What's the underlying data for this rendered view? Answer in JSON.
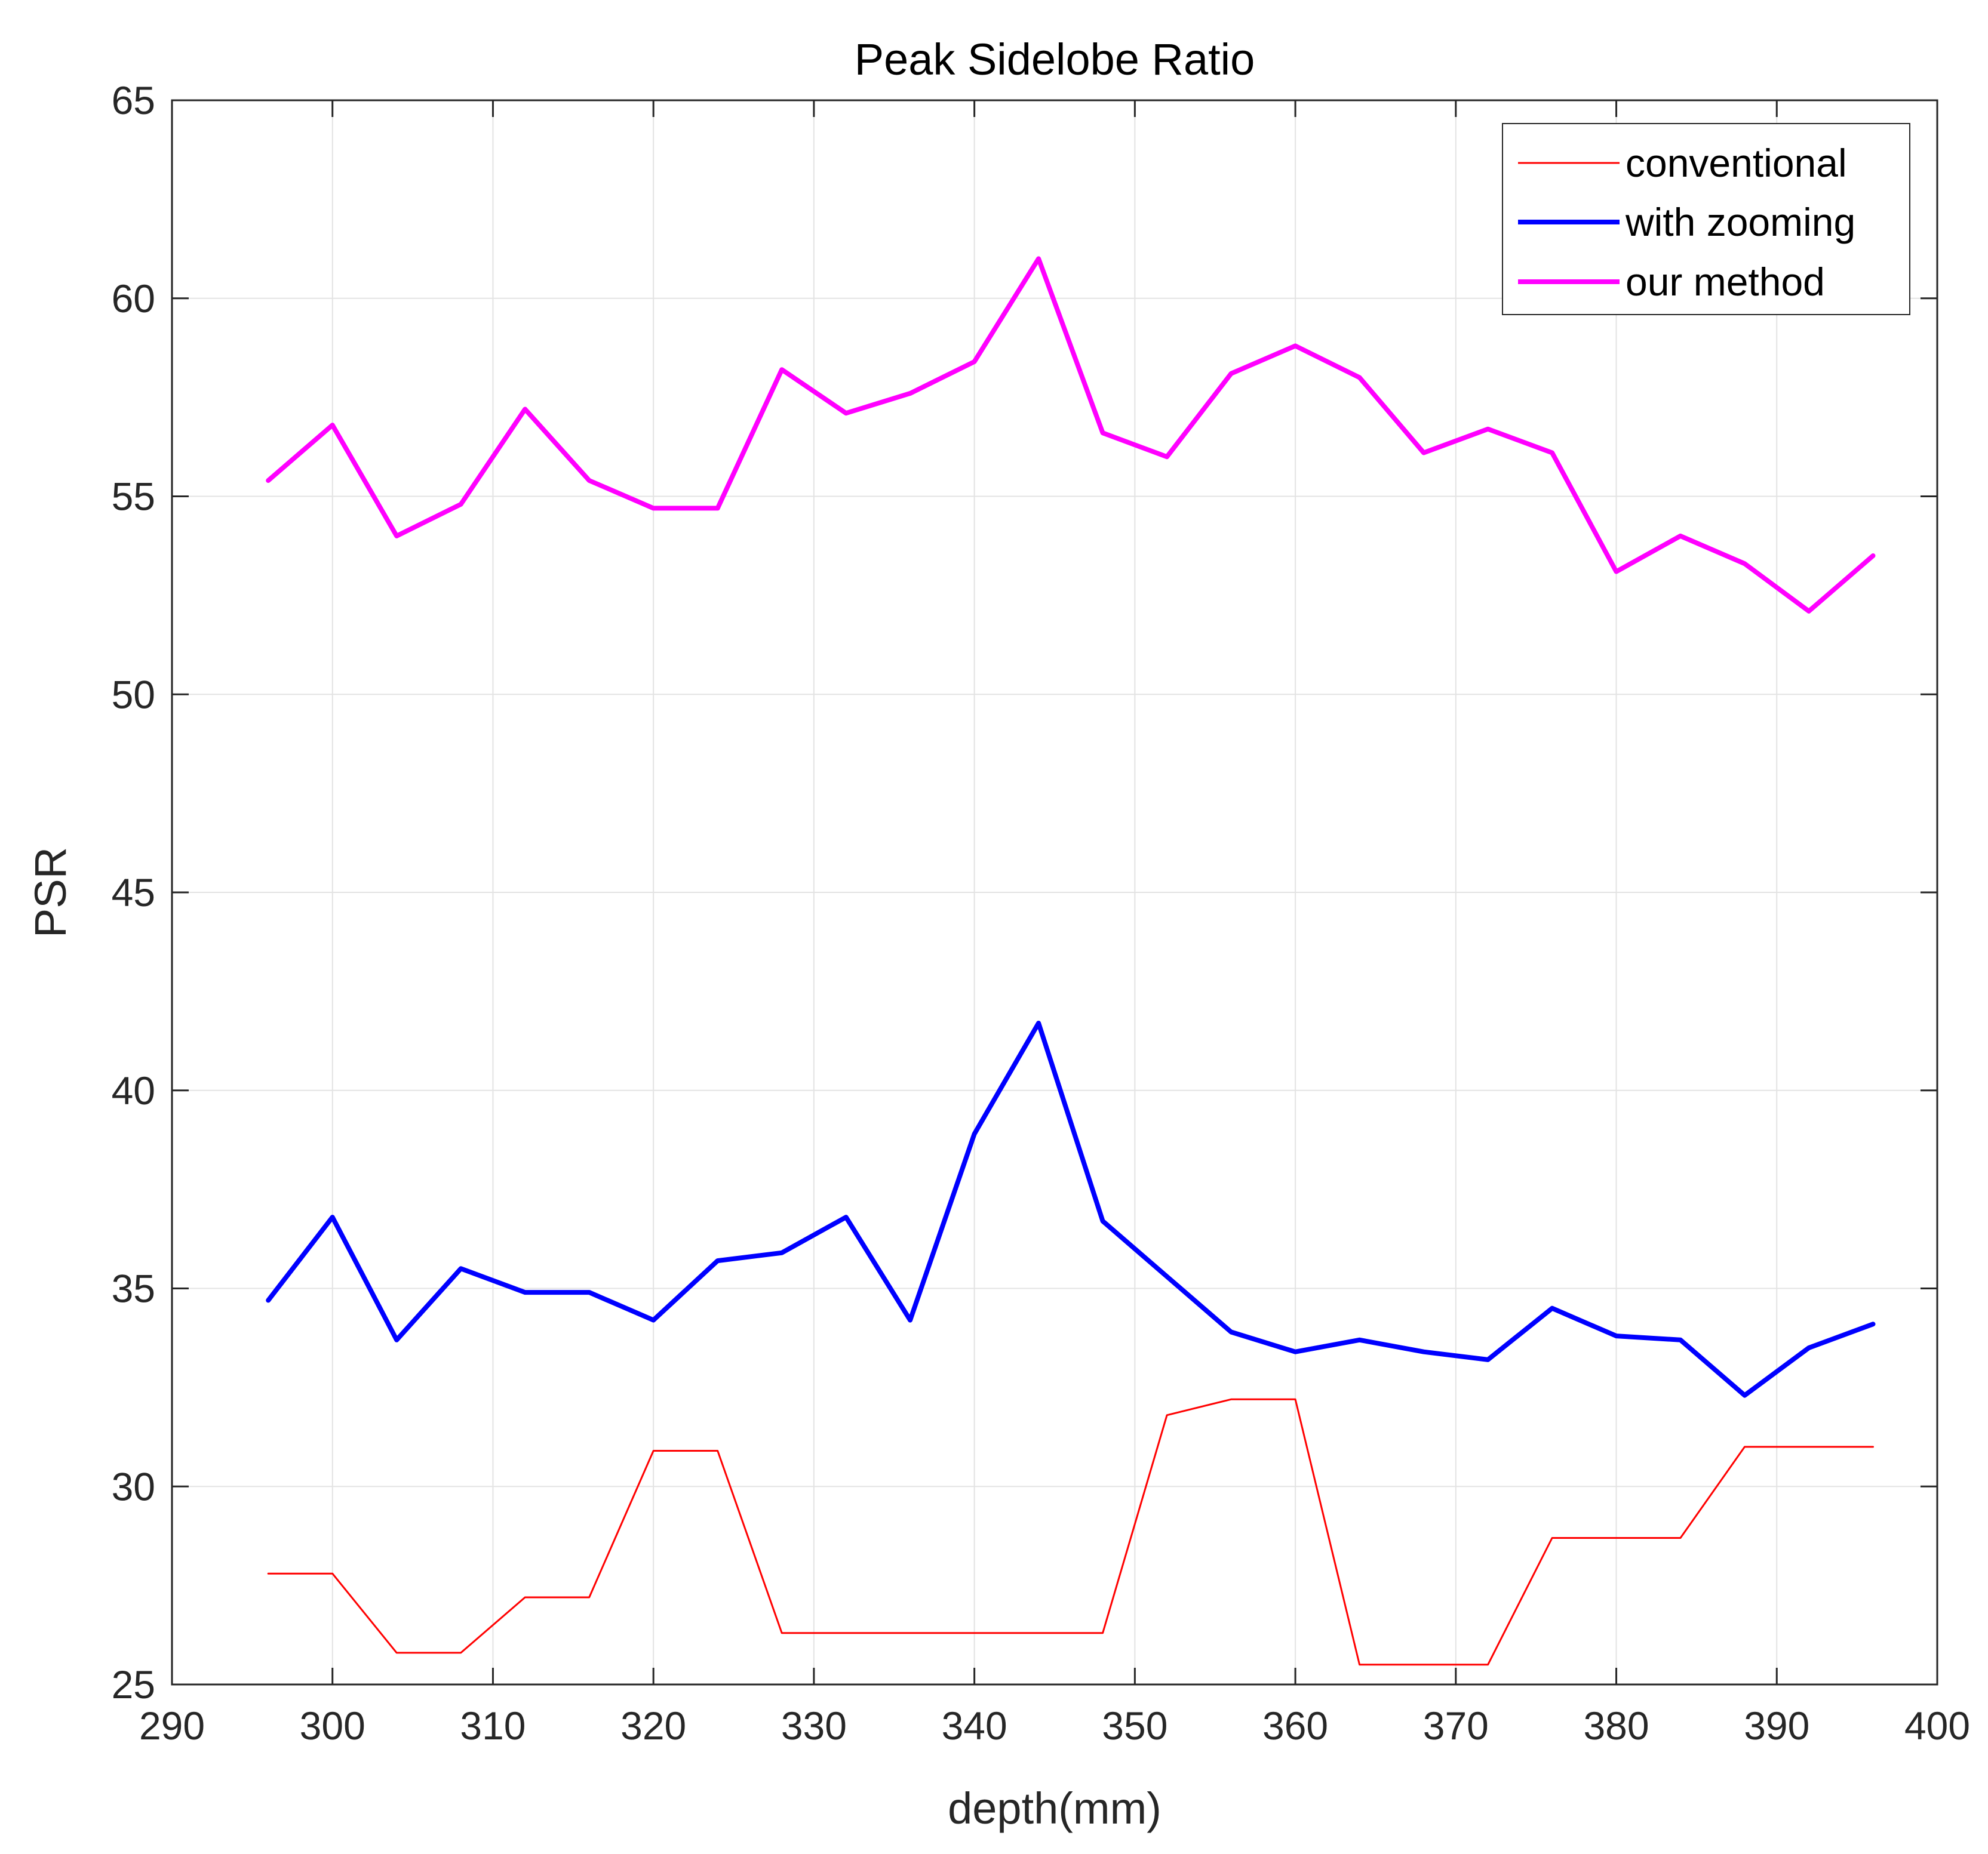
{
  "chart_data": {
    "type": "line",
    "title": "Peak Sidelobe Ratio",
    "xlabel": "depth(mm)",
    "ylabel": "PSR",
    "xlim": [
      290,
      400
    ],
    "ylim": [
      25,
      65
    ],
    "xticks": [
      290,
      300,
      310,
      320,
      330,
      340,
      350,
      360,
      370,
      380,
      390,
      400
    ],
    "yticks": [
      25,
      30,
      35,
      40,
      45,
      50,
      55,
      60,
      65
    ],
    "grid": true,
    "legend_position": "top-right",
    "x": [
      296,
      300,
      304,
      308,
      312,
      316,
      320,
      324,
      328,
      332,
      336,
      340,
      344,
      348,
      352,
      356,
      360,
      364,
      368,
      372,
      376,
      380,
      384,
      388,
      392,
      396
    ],
    "series": [
      {
        "name": "conventional",
        "color": "#ff0000",
        "values": [
          27.8,
          27.8,
          25.8,
          25.8,
          27.2,
          27.2,
          30.9,
          30.9,
          26.3,
          26.3,
          26.3,
          26.3,
          26.3,
          26.3,
          31.8,
          32.2,
          32.2,
          25.5,
          25.5,
          25.5,
          28.7,
          28.7,
          28.7,
          31.0,
          31.0,
          31.0
        ]
      },
      {
        "name": "with zooming",
        "color": "#0000ff",
        "values": [
          34.7,
          36.8,
          33.7,
          35.5,
          34.9,
          34.9,
          34.2,
          35.7,
          35.9,
          36.8,
          34.2,
          38.9,
          41.7,
          36.7,
          35.3,
          33.9,
          33.4,
          33.7,
          33.4,
          33.2,
          34.5,
          33.8,
          33.7,
          32.3,
          33.5,
          34.1
        ]
      },
      {
        "name": "our method",
        "color": "#ff00ff",
        "values": [
          55.4,
          56.8,
          54.0,
          54.8,
          57.2,
          55.4,
          54.7,
          54.7,
          58.2,
          57.1,
          57.6,
          58.4,
          61.0,
          56.6,
          56.0,
          58.1,
          58.8,
          58.0,
          56.1,
          56.7,
          56.1,
          53.1,
          54.0,
          53.3,
          52.1,
          53.5
        ]
      }
    ]
  }
}
